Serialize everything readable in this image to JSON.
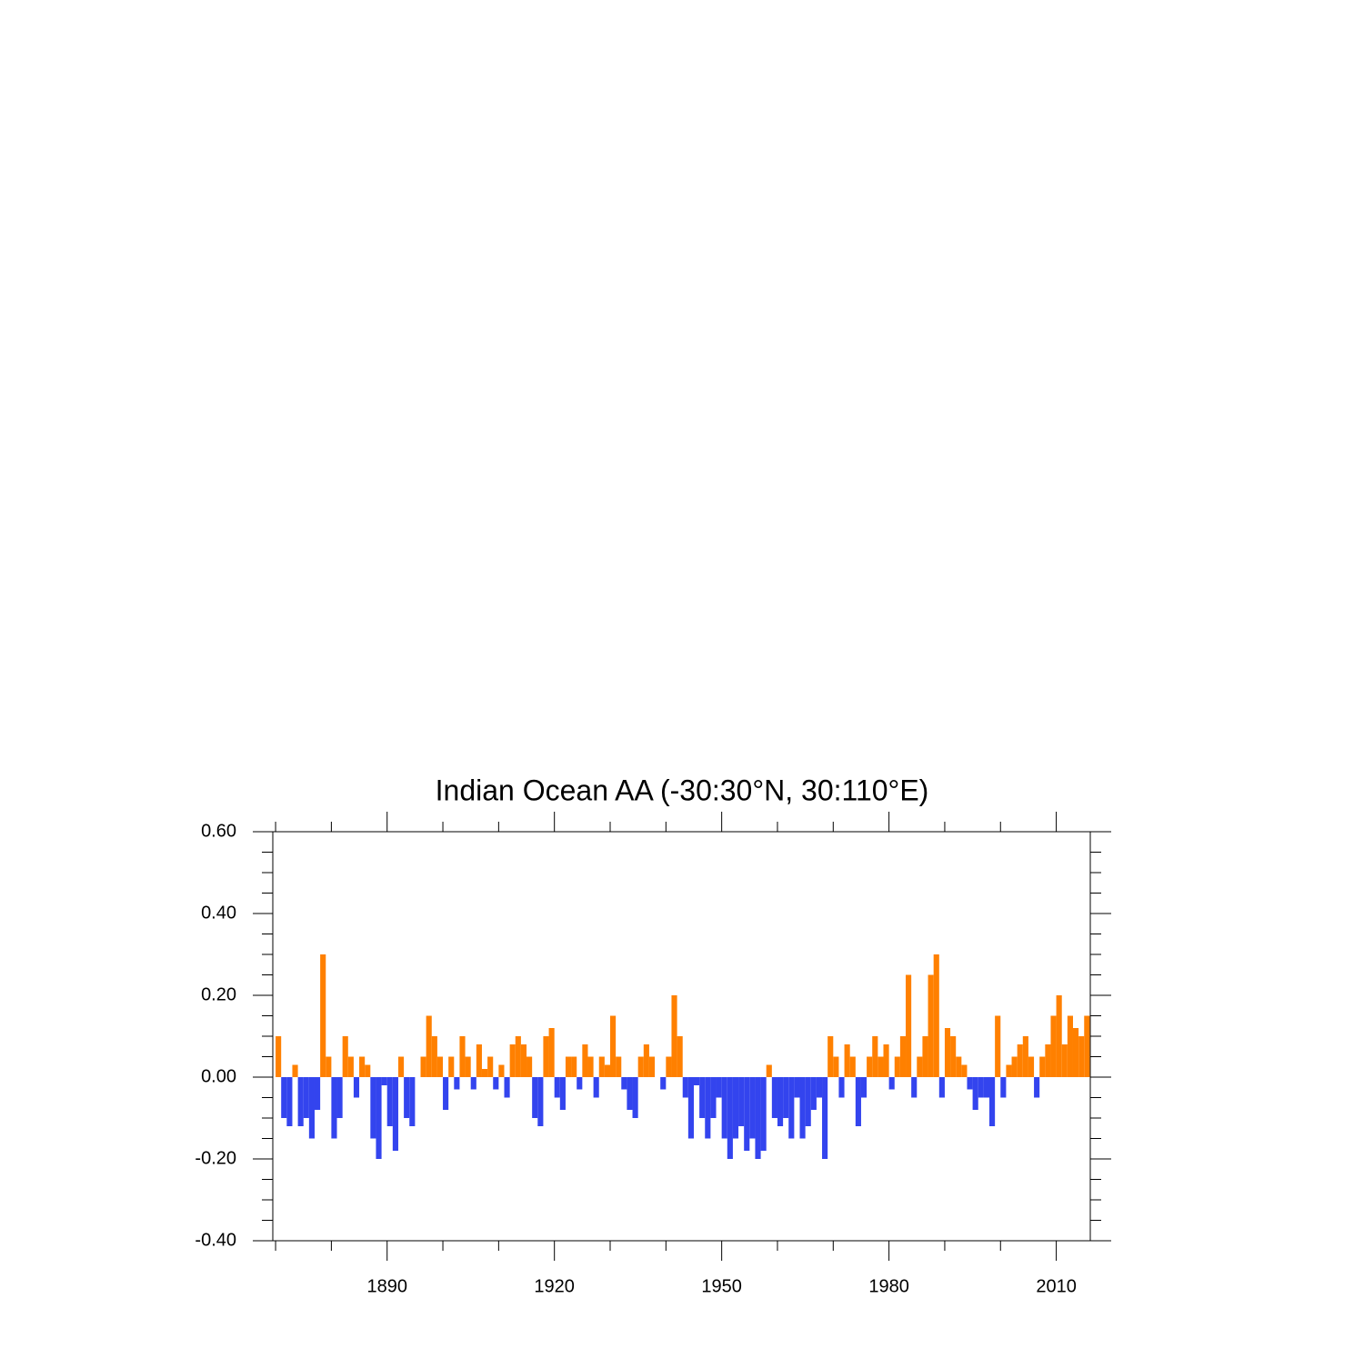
{
  "chart_data": {
    "type": "bar",
    "title": "Indian Ocean AA (-30:30°N, 30:110°E)",
    "x": [
      1870,
      1871,
      1872,
      1873,
      1874,
      1875,
      1876,
      1877,
      1878,
      1879,
      1880,
      1881,
      1882,
      1883,
      1884,
      1885,
      1886,
      1887,
      1888,
      1889,
      1890,
      1891,
      1892,
      1893,
      1894,
      1895,
      1896,
      1897,
      1898,
      1899,
      1900,
      1901,
      1902,
      1903,
      1904,
      1905,
      1906,
      1907,
      1908,
      1909,
      1910,
      1911,
      1912,
      1913,
      1914,
      1915,
      1916,
      1917,
      1918,
      1919,
      1920,
      1921,
      1922,
      1923,
      1924,
      1925,
      1926,
      1927,
      1928,
      1929,
      1930,
      1931,
      1932,
      1933,
      1934,
      1935,
      1936,
      1937,
      1938,
      1939,
      1940,
      1941,
      1942,
      1943,
      1944,
      1945,
      1946,
      1947,
      1948,
      1949,
      1950,
      1951,
      1952,
      1953,
      1954,
      1955,
      1956,
      1957,
      1958,
      1959,
      1960,
      1961,
      1962,
      1963,
      1964,
      1965,
      1966,
      1967,
      1968,
      1969,
      1970,
      1971,
      1972,
      1973,
      1974,
      1975,
      1976,
      1977,
      1978,
      1979,
      1980,
      1981,
      1982,
      1983,
      1984,
      1985,
      1986,
      1987,
      1988,
      1989,
      1990,
      1991,
      1992,
      1993,
      1994,
      1995,
      1996,
      1997,
      1998,
      1999,
      2000,
      2001,
      2002,
      2003,
      2004,
      2005,
      2006,
      2007,
      2008,
      2009,
      2010,
      2011,
      2012,
      2013,
      2014,
      2015
    ],
    "values": [
      0.1,
      -0.1,
      -0.12,
      0.03,
      -0.12,
      -0.1,
      -0.15,
      -0.08,
      0.3,
      0.05,
      -0.15,
      -0.1,
      0.1,
      0.05,
      -0.05,
      0.05,
      0.03,
      -0.15,
      -0.2,
      -0.02,
      -0.12,
      -0.18,
      0.05,
      -0.1,
      -0.12,
      0.0,
      0.05,
      0.15,
      0.1,
      0.05,
      -0.08,
      0.05,
      -0.03,
      0.1,
      0.05,
      -0.03,
      0.08,
      0.02,
      0.05,
      -0.03,
      0.03,
      -0.05,
      0.08,
      0.1,
      0.08,
      0.05,
      -0.1,
      -0.12,
      0.1,
      0.12,
      -0.05,
      -0.08,
      0.05,
      0.05,
      -0.03,
      0.08,
      0.05,
      -0.05,
      0.05,
      0.03,
      0.15,
      0.05,
      -0.03,
      -0.08,
      -0.1,
      0.05,
      0.08,
      0.05,
      0.0,
      -0.03,
      0.05,
      0.2,
      0.1,
      -0.05,
      -0.15,
      -0.02,
      -0.1,
      -0.15,
      -0.1,
      -0.05,
      -0.15,
      -0.2,
      -0.15,
      -0.12,
      -0.18,
      -0.15,
      -0.2,
      -0.18,
      0.03,
      -0.1,
      -0.12,
      -0.1,
      -0.15,
      -0.05,
      -0.15,
      -0.12,
      -0.08,
      -0.05,
      -0.2,
      0.1,
      0.05,
      -0.05,
      0.08,
      0.05,
      -0.12,
      -0.05,
      0.05,
      0.1,
      0.05,
      0.08,
      -0.03,
      0.05,
      0.1,
      0.25,
      -0.05,
      0.05,
      0.1,
      0.25,
      0.3,
      -0.05,
      0.12,
      0.1,
      0.05,
      0.03,
      -0.03,
      -0.08,
      -0.05,
      -0.05,
      -0.12,
      0.15,
      -0.05,
      0.03,
      0.05,
      0.08,
      0.1,
      0.05,
      -0.05,
      0.05,
      0.08,
      0.15,
      0.2,
      0.08,
      0.15,
      0.12,
      0.1,
      0.15
    ],
    "positive_color": "#ff8000",
    "negative_color": "#3344ee",
    "xlim": [
      1869.5,
      2016.1
    ],
    "xticks": [
      1890,
      1920,
      1950,
      1980,
      2010
    ],
    "xminor_ticks": [
      1870,
      1880,
      1900,
      1910,
      1930,
      1940,
      1960,
      1970,
      1990,
      2000
    ],
    "ylim": [
      -0.4,
      0.6
    ],
    "yticks": [
      {
        "value": -0.4,
        "label": "-0.40"
      },
      {
        "value": -0.2,
        "label": "-0.20"
      },
      {
        "value": 0,
        "label": "0.00"
      },
      {
        "value": 0.2,
        "label": "0.20"
      },
      {
        "value": 0.4,
        "label": "0.40"
      },
      {
        "value": 0.6,
        "label": "0.60"
      }
    ],
    "yminor_ticks": [
      -0.35,
      -0.3,
      -0.25,
      -0.15,
      -0.1,
      -0.05,
      0.05,
      0.1,
      0.15,
      0.25,
      0.3,
      0.35,
      0.45,
      0.5,
      0.55
    ]
  }
}
